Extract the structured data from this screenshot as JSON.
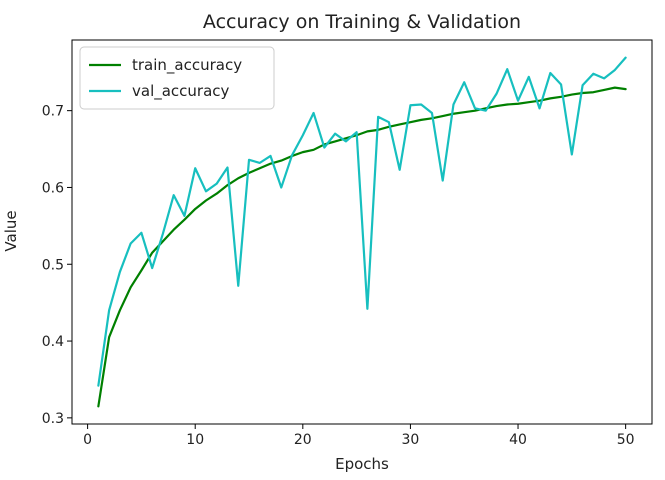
{
  "chart_data": {
    "type": "line",
    "title": "Accuracy on Training & Validation",
    "xlabel": "Epochs",
    "ylabel": "Value",
    "xlim": [
      -1.45,
      52.45
    ],
    "ylim": [
      0.292,
      0.792
    ],
    "xticks": [
      0,
      10,
      20,
      30,
      40,
      50
    ],
    "yticks": [
      0.3,
      0.4,
      0.5,
      0.6,
      0.7
    ],
    "grid": false,
    "legend_position": "top-left",
    "x": [
      1,
      2,
      3,
      4,
      5,
      6,
      7,
      8,
      9,
      10,
      11,
      12,
      13,
      14,
      15,
      16,
      17,
      18,
      19,
      20,
      21,
      22,
      23,
      24,
      25,
      26,
      27,
      28,
      29,
      30,
      31,
      32,
      33,
      34,
      35,
      36,
      37,
      38,
      39,
      40,
      41,
      42,
      43,
      44,
      45,
      46,
      47,
      48,
      49,
      50
    ],
    "series": [
      {
        "name": "train_accuracy",
        "color": "#008000",
        "values": [
          0.315,
          0.405,
          0.44,
          0.47,
          0.492,
          0.515,
          0.53,
          0.545,
          0.558,
          0.572,
          0.583,
          0.592,
          0.603,
          0.612,
          0.619,
          0.625,
          0.631,
          0.635,
          0.641,
          0.646,
          0.649,
          0.656,
          0.66,
          0.664,
          0.668,
          0.673,
          0.675,
          0.679,
          0.682,
          0.685,
          0.688,
          0.69,
          0.693,
          0.696,
          0.698,
          0.7,
          0.703,
          0.706,
          0.708,
          0.709,
          0.711,
          0.713,
          0.716,
          0.718,
          0.721,
          0.723,
          0.724,
          0.727,
          0.73,
          0.728
        ]
      },
      {
        "name": "val_accuracy",
        "color": "#17bfbf",
        "values": [
          0.342,
          0.44,
          0.49,
          0.527,
          0.541,
          0.495,
          0.54,
          0.59,
          0.563,
          0.625,
          0.595,
          0.605,
          0.626,
          0.472,
          0.636,
          0.632,
          0.641,
          0.6,
          0.642,
          0.668,
          0.697,
          0.652,
          0.67,
          0.66,
          0.672,
          0.442,
          0.692,
          0.685,
          0.623,
          0.707,
          0.708,
          0.697,
          0.609,
          0.708,
          0.737,
          0.703,
          0.7,
          0.722,
          0.754,
          0.713,
          0.744,
          0.703,
          0.749,
          0.734,
          0.643,
          0.733,
          0.748,
          0.742,
          0.753,
          0.769
        ]
      }
    ]
  }
}
